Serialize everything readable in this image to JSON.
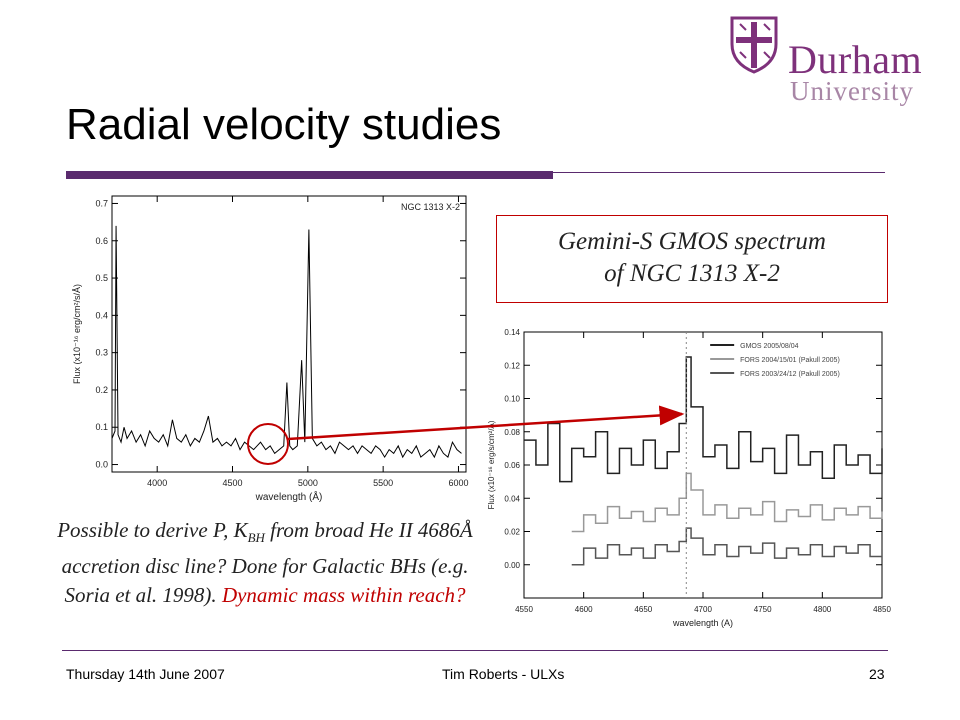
{
  "logo": {
    "name_line1": "Durham",
    "name_line2": "University",
    "crest": "durham-crest-icon"
  },
  "slide": {
    "title": "Radial velocity studies",
    "callout_line1": "Gemini-S GMOS spectrum",
    "callout_line2": "of NGC 1313 X-2",
    "caption": {
      "part1": "Possible to derive P, K",
      "sub": "BH",
      "part2": " from broad He II 4686Å accretion disc line?  Done for Galactic BHs (e.g. Soria et al. 1998).  ",
      "highlight": "Dynamic mass within reach?"
    }
  },
  "footer": {
    "date": "Thursday 14th June 2007",
    "author": "Tim Roberts - ULXs",
    "page": "23"
  },
  "colors": {
    "accent": "#5a2a6e",
    "highlight": "#c00000",
    "logo": "#7e317b"
  },
  "chart_data": [
    {
      "type": "line",
      "title": "NGC 1313 X-2",
      "xlabel": "wavelength (Å)",
      "ylabel": "Flux (x10⁻¹⁶ erg/cm²/s/Å)",
      "xlim": [
        3700,
        6050
      ],
      "ylim": [
        -0.02,
        0.72
      ],
      "xticks": [
        4000,
        4500,
        5000,
        5500,
        6000
      ],
      "yticks": [
        0.0,
        0.1,
        0.2,
        0.3,
        0.4,
        0.5,
        0.6,
        0.7
      ],
      "xtick_labels": [
        "4000",
        "4500",
        "5000",
        "5500",
        "6000"
      ],
      "ytick_labels": [
        "0.0",
        "0.1",
        "0.2",
        "0.3",
        "0.4",
        "0.5",
        "0.6",
        "0.7"
      ],
      "highlight_region": {
        "x": 4686,
        "y": 0.06
      },
      "series": [
        {
          "x": [
            3700,
            3720,
            3727,
            3740,
            3760,
            3780,
            3800,
            3830,
            3860,
            3890,
            3920,
            3950,
            3980,
            4010,
            4040,
            4070,
            4101,
            4130,
            4160,
            4190,
            4220,
            4250,
            4280,
            4310,
            4340,
            4370,
            4400,
            4430,
            4460,
            4490,
            4520,
            4550,
            4580,
            4610,
            4640,
            4686,
            4720,
            4750,
            4780,
            4810,
            4840,
            4861,
            4880,
            4900,
            4930,
            4959,
            4980,
            5007,
            5030,
            5060,
            5090,
            5120,
            5150,
            5180,
            5210,
            5240,
            5270,
            5300,
            5330,
            5360,
            5390,
            5420,
            5450,
            5480,
            5510,
            5540,
            5570,
            5600,
            5630,
            5660,
            5690,
            5720,
            5750,
            5780,
            5810,
            5840,
            5870,
            5900,
            5930,
            5960,
            5990,
            6020
          ],
          "y": [
            0.07,
            0.09,
            0.64,
            0.08,
            0.06,
            0.1,
            0.07,
            0.09,
            0.06,
            0.08,
            0.05,
            0.09,
            0.07,
            0.06,
            0.08,
            0.05,
            0.12,
            0.07,
            0.06,
            0.08,
            0.05,
            0.07,
            0.06,
            0.09,
            0.13,
            0.06,
            0.07,
            0.05,
            0.06,
            0.05,
            0.07,
            0.04,
            0.06,
            0.05,
            0.04,
            0.06,
            0.04,
            0.05,
            0.03,
            0.04,
            0.05,
            0.22,
            0.05,
            0.04,
            0.05,
            0.28,
            0.06,
            0.63,
            0.07,
            0.05,
            0.06,
            0.04,
            0.05,
            0.03,
            0.06,
            0.05,
            0.04,
            0.05,
            0.03,
            0.05,
            0.04,
            0.03,
            0.05,
            0.04,
            0.02,
            0.04,
            0.03,
            0.05,
            0.02,
            0.04,
            0.03,
            0.05,
            0.02,
            0.03,
            0.04,
            0.02,
            0.05,
            0.03,
            0.02,
            0.06,
            0.04,
            0.03
          ]
        }
      ]
    },
    {
      "type": "line",
      "xlabel": "wavelength (A)",
      "ylabel": "Flux (x10⁻¹⁶ erg/s/cm²/A)",
      "xlim": [
        4550,
        4850
      ],
      "ylim": [
        -0.02,
        0.14
      ],
      "xticks": [
        4550,
        4600,
        4650,
        4700,
        4750,
        4800,
        4850
      ],
      "yticks": [
        0.0,
        0.02,
        0.04,
        0.06,
        0.08,
        0.1,
        0.12,
        0.14
      ],
      "xtick_labels": [
        "4550",
        "4600",
        "4650",
        "4700",
        "4750",
        "4800",
        "4850"
      ],
      "ytick_labels": [
        "0.00",
        "0.02",
        "0.04",
        "0.06",
        "0.08",
        "0.10",
        "0.12",
        "0.14"
      ],
      "legend_position": "top-right",
      "series": [
        {
          "name": "GMOS 2005/08/04",
          "color": "#222222",
          "x": [
            4550,
            4560,
            4570,
            4580,
            4590,
            4600,
            4610,
            4620,
            4630,
            4640,
            4650,
            4660,
            4670,
            4680,
            4686,
            4690,
            4700,
            4710,
            4720,
            4730,
            4740,
            4750,
            4760,
            4770,
            4780,
            4790,
            4800,
            4810,
            4820,
            4830,
            4840,
            4850
          ],
          "y": [
            0.075,
            0.06,
            0.085,
            0.05,
            0.07,
            0.065,
            0.08,
            0.055,
            0.07,
            0.06,
            0.075,
            0.058,
            0.068,
            0.085,
            0.125,
            0.095,
            0.065,
            0.072,
            0.058,
            0.08,
            0.062,
            0.07,
            0.055,
            0.078,
            0.06,
            0.068,
            0.052,
            0.072,
            0.06,
            0.066,
            0.055,
            0.07
          ]
        },
        {
          "name": "FORS 2004/15/01 (Pakull 2005)",
          "color": "#999999",
          "x": [
            4590,
            4600,
            4610,
            4620,
            4630,
            4640,
            4650,
            4660,
            4670,
            4680,
            4686,
            4690,
            4700,
            4710,
            4720,
            4730,
            4740,
            4750,
            4760,
            4770,
            4780,
            4790,
            4800,
            4810,
            4820,
            4830,
            4840,
            4850
          ],
          "y": [
            0.02,
            0.03,
            0.025,
            0.035,
            0.028,
            0.032,
            0.026,
            0.034,
            0.03,
            0.04,
            0.055,
            0.045,
            0.03,
            0.036,
            0.028,
            0.034,
            0.03,
            0.038,
            0.026,
            0.033,
            0.029,
            0.036,
            0.027,
            0.034,
            0.03,
            0.035,
            0.028,
            0.032
          ]
        },
        {
          "name": "FORS 2003/24/12 (Pakull 2005)",
          "color": "#555555",
          "x": [
            4590,
            4600,
            4610,
            4620,
            4630,
            4640,
            4650,
            4660,
            4670,
            4680,
            4686,
            4690,
            4700,
            4710,
            4720,
            4730,
            4740,
            4750,
            4760,
            4770,
            4780,
            4790,
            4800,
            4810,
            4820,
            4830,
            4840,
            4850
          ],
          "y": [
            0.0,
            0.01,
            0.004,
            0.012,
            0.006,
            0.01,
            0.004,
            0.012,
            0.008,
            0.014,
            0.022,
            0.016,
            0.006,
            0.012,
            0.005,
            0.011,
            0.007,
            0.013,
            0.004,
            0.01,
            0.006,
            0.012,
            0.005,
            0.011,
            0.007,
            0.012,
            0.005,
            0.009
          ]
        }
      ]
    }
  ]
}
